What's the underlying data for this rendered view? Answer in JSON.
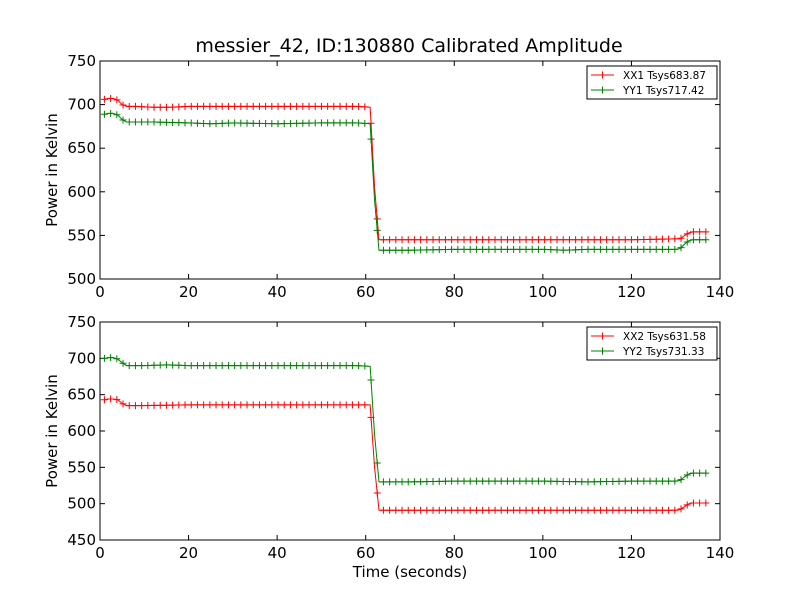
{
  "title": "messier_42, ID:130880 Calibrated Amplitude",
  "chart_data": [
    {
      "type": "line",
      "ylabel": "Power in Kelvin",
      "xlabel": "",
      "xlim": [
        0,
        140
      ],
      "ylim": [
        500,
        750
      ],
      "xticks": [
        0,
        20,
        40,
        60,
        80,
        100,
        120,
        140
      ],
      "yticks": [
        500,
        550,
        600,
        650,
        700,
        750
      ],
      "grid": false,
      "legend_position": "top-right",
      "series": [
        {
          "name": "XX1 Tsys683.87",
          "color": "#ff0000",
          "points": [
            [
              1,
              706
            ],
            [
              2,
              707
            ],
            [
              3,
              707
            ],
            [
              4,
              705
            ],
            [
              5,
              700
            ],
            [
              6,
              698
            ],
            [
              8,
              698
            ],
            [
              12,
              697
            ],
            [
              16,
              697
            ],
            [
              20,
              698
            ],
            [
              30,
              698
            ],
            [
              40,
              698
            ],
            [
              50,
              698
            ],
            [
              58,
              698
            ],
            [
              61,
              697
            ],
            [
              62,
              605
            ],
            [
              63,
              545
            ],
            [
              64,
              545
            ],
            [
              70,
              545
            ],
            [
              80,
              545
            ],
            [
              90,
              545
            ],
            [
              100,
              545
            ],
            [
              110,
              545
            ],
            [
              120,
              545
            ],
            [
              130,
              546
            ],
            [
              131,
              546
            ],
            [
              132,
              550
            ],
            [
              133,
              553
            ],
            [
              134,
              554
            ],
            [
              137,
              554
            ]
          ]
        },
        {
          "name": "YY1 Tsys717.42",
          "color": "#008000",
          "points": [
            [
              1,
              689
            ],
            [
              2,
              690
            ],
            [
              3,
              690
            ],
            [
              4,
              688
            ],
            [
              5,
              683
            ],
            [
              6,
              680
            ],
            [
              10,
              680
            ],
            [
              12,
              680
            ],
            [
              20,
              679
            ],
            [
              25,
              678
            ],
            [
              30,
              679
            ],
            [
              40,
              678
            ],
            [
              50,
              679
            ],
            [
              58,
              679
            ],
            [
              61,
              678
            ],
            [
              62,
              590
            ],
            [
              63,
              533
            ],
            [
              64,
              533
            ],
            [
              70,
              533
            ],
            [
              80,
              534
            ],
            [
              90,
              534
            ],
            [
              100,
              534
            ],
            [
              105,
              533
            ],
            [
              110,
              534
            ],
            [
              120,
              534
            ],
            [
              130,
              534
            ],
            [
              131,
              535
            ],
            [
              132,
              540
            ],
            [
              133,
              544
            ],
            [
              134,
              545
            ],
            [
              137,
              545
            ]
          ]
        }
      ]
    },
    {
      "type": "line",
      "ylabel": "Power in Kelvin",
      "xlabel": "Time (seconds)",
      "xlim": [
        0,
        140
      ],
      "ylim": [
        450,
        750
      ],
      "xticks": [
        0,
        20,
        40,
        60,
        80,
        100,
        120,
        140
      ],
      "yticks": [
        450,
        500,
        550,
        600,
        650,
        700,
        750
      ],
      "grid": false,
      "legend_position": "top-right",
      "series": [
        {
          "name": "XX2 Tsys631.58",
          "color": "#ff0000",
          "points": [
            [
              1,
              643
            ],
            [
              2,
              644
            ],
            [
              3,
              644
            ],
            [
              4,
              643
            ],
            [
              5,
              638
            ],
            [
              6,
              635
            ],
            [
              10,
              635
            ],
            [
              20,
              636
            ],
            [
              30,
              636
            ],
            [
              40,
              636
            ],
            [
              50,
              636
            ],
            [
              58,
              636
            ],
            [
              61,
              636
            ],
            [
              62,
              550
            ],
            [
              63,
              491
            ],
            [
              64,
              491
            ],
            [
              70,
              491
            ],
            [
              80,
              491
            ],
            [
              90,
              491
            ],
            [
              100,
              491
            ],
            [
              110,
              491
            ],
            [
              120,
              491
            ],
            [
              130,
              491
            ],
            [
              131,
              492
            ],
            [
              132,
              496
            ],
            [
              133,
              500
            ],
            [
              134,
              501
            ],
            [
              137,
              501
            ]
          ]
        },
        {
          "name": "YY2 Tsys731.33",
          "color": "#008000",
          "points": [
            [
              1,
              700
            ],
            [
              2,
              701
            ],
            [
              3,
              701
            ],
            [
              4,
              699
            ],
            [
              5,
              694
            ],
            [
              6,
              690
            ],
            [
              10,
              690
            ],
            [
              15,
              691
            ],
            [
              20,
              690
            ],
            [
              30,
              690
            ],
            [
              40,
              690
            ],
            [
              50,
              690
            ],
            [
              58,
              690
            ],
            [
              61,
              689
            ],
            [
              62,
              595
            ],
            [
              63,
              530
            ],
            [
              64,
              530
            ],
            [
              70,
              530
            ],
            [
              80,
              531
            ],
            [
              90,
              531
            ],
            [
              100,
              531
            ],
            [
              110,
              530
            ],
            [
              120,
              531
            ],
            [
              130,
              531
            ],
            [
              131,
              532
            ],
            [
              132,
              537
            ],
            [
              133,
              541
            ],
            [
              134,
              542
            ],
            [
              137,
              542
            ]
          ]
        }
      ]
    }
  ]
}
